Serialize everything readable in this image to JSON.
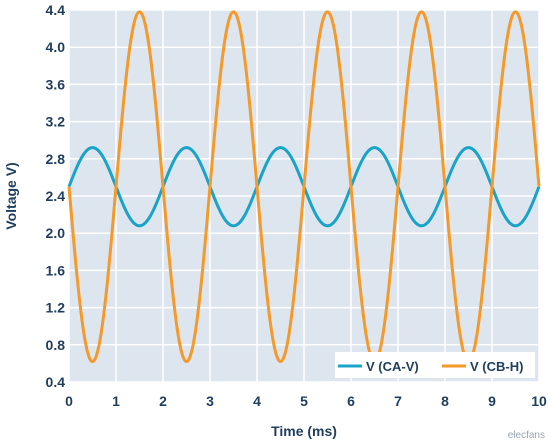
{
  "chart_data": {
    "type": "line",
    "xlabel": "Time (ms)",
    "ylabel": "Voltage V)",
    "xlim": [
      0,
      10
    ],
    "ylim": [
      0.4,
      4.4
    ],
    "x_ticks": [
      "0",
      "1",
      "2",
      "3",
      "4",
      "5",
      "6",
      "7",
      "8",
      "9",
      "10"
    ],
    "y_ticks": [
      "0.4",
      "0.8",
      "1.2",
      "1.6",
      "2.0",
      "2.4",
      "2.8",
      "3.2",
      "3.6",
      "4.0",
      "4.4"
    ],
    "grid": true,
    "legend_position": "bottom-right",
    "series": [
      {
        "name": "V (CA-V)",
        "color": "#1aa3c8",
        "waveform": "sine",
        "offset": 2.5,
        "amplitude": 0.42,
        "period_ms": 2.0,
        "phase_deg": 0
      },
      {
        "name": "V (CB-H)",
        "color": "#f39a2b",
        "waveform": "sine",
        "offset": 2.5,
        "amplitude": 1.88,
        "period_ms": 2.0,
        "phase_deg": 180
      }
    ]
  },
  "watermark": "elecfans"
}
